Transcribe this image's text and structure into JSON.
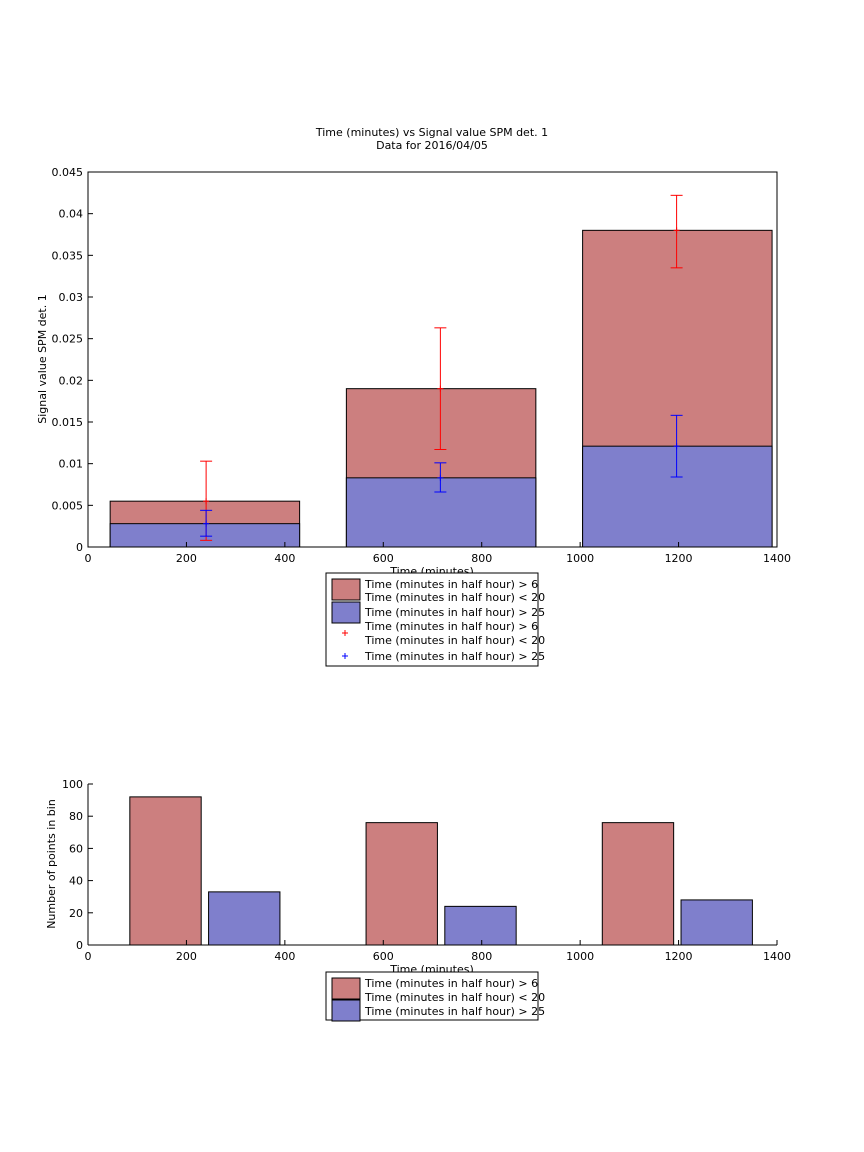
{
  "chart_data": [
    {
      "type": "bar",
      "title": "Time (minutes) vs Signal value SPM det. 1",
      "subtitle": "Data for 2016/04/05",
      "xlabel": "Time (minutes)",
      "ylabel": "Signal value SPM det. 1",
      "xlim": [
        0,
        1400
      ],
      "ylim": [
        0,
        0.045
      ],
      "xticks": [
        0,
        200,
        400,
        600,
        800,
        1000,
        1200,
        1400
      ],
      "yticks": [
        0,
        0.005,
        0.01,
        0.015,
        0.02,
        0.025,
        0.03,
        0.035,
        0.04,
        0.045
      ],
      "ytick_labels": [
        "0",
        "0.005",
        "0.01",
        "0.015",
        "0.02",
        "0.025",
        "0.03",
        "0.035",
        "0.04",
        "0.045"
      ],
      "grid": false,
      "bars_overlaid": true,
      "bar_bins": [
        [
          45,
          430
        ],
        [
          525,
          910
        ],
        [
          1005,
          1390
        ]
      ],
      "series": [
        {
          "kind": "bar",
          "legend": [
            "Time (minutes in half hour) > 6",
            "Time (minutes in half hour) < 20"
          ],
          "color": "#cc7f7f",
          "values": [
            0.0055,
            0.019,
            0.038
          ]
        },
        {
          "kind": "bar",
          "legend": [
            "Time (minutes in half hour) > 25"
          ],
          "color": "#7f7fcc",
          "values": [
            0.0028,
            0.0083,
            0.0121
          ]
        },
        {
          "kind": "errorbar",
          "legend": [
            "Time (minutes in half hour) > 6",
            "Time (minutes in half hour) < 20"
          ],
          "color": "#ff0000",
          "x": [
            240,
            716,
            1196
          ],
          "y": [
            0.0055,
            0.019,
            0.038
          ],
          "lower": [
            0.0008,
            0.0117,
            0.0335
          ],
          "upper": [
            0.0103,
            0.0263,
            0.0422
          ]
        },
        {
          "kind": "errorbar",
          "legend": [
            "Time (minutes in half hour) > 25"
          ],
          "color": "#0000ff",
          "x": [
            240,
            716,
            1196
          ],
          "y": [
            0.0028,
            0.0083,
            0.0121
          ],
          "lower": [
            0.0013,
            0.0066,
            0.0084
          ],
          "upper": [
            0.0044,
            0.0101,
            0.0158
          ]
        }
      ],
      "legend_position": "below-center"
    },
    {
      "type": "bar",
      "title": "",
      "xlabel": "Time (minutes)",
      "ylabel": "Number of points in bin",
      "xlim": [
        0,
        1400
      ],
      "ylim": [
        0,
        100
      ],
      "xticks": [
        0,
        200,
        400,
        600,
        800,
        1000,
        1200,
        1400
      ],
      "yticks": [
        0,
        20,
        40,
        60,
        80,
        100
      ],
      "ytick_labels": [
        "0",
        "20",
        "40",
        "60",
        "80",
        "100"
      ],
      "grid": false,
      "bar_groups_x": [
        [
          85,
          230,
          245,
          390
        ],
        [
          565,
          710,
          725,
          870
        ],
        [
          1045,
          1190,
          1205,
          1350
        ]
      ],
      "series": [
        {
          "kind": "bar",
          "legend": [
            "Time (minutes in half hour) > 6",
            "Time (minutes in half hour) < 20"
          ],
          "color": "#cc7f7f",
          "values": [
            92,
            76,
            76
          ]
        },
        {
          "kind": "bar",
          "legend": [
            "Time (minutes in half hour) > 25"
          ],
          "color": "#7f7fcc",
          "values": [
            33,
            24,
            28
          ]
        }
      ],
      "legend_position": "below-center"
    }
  ]
}
